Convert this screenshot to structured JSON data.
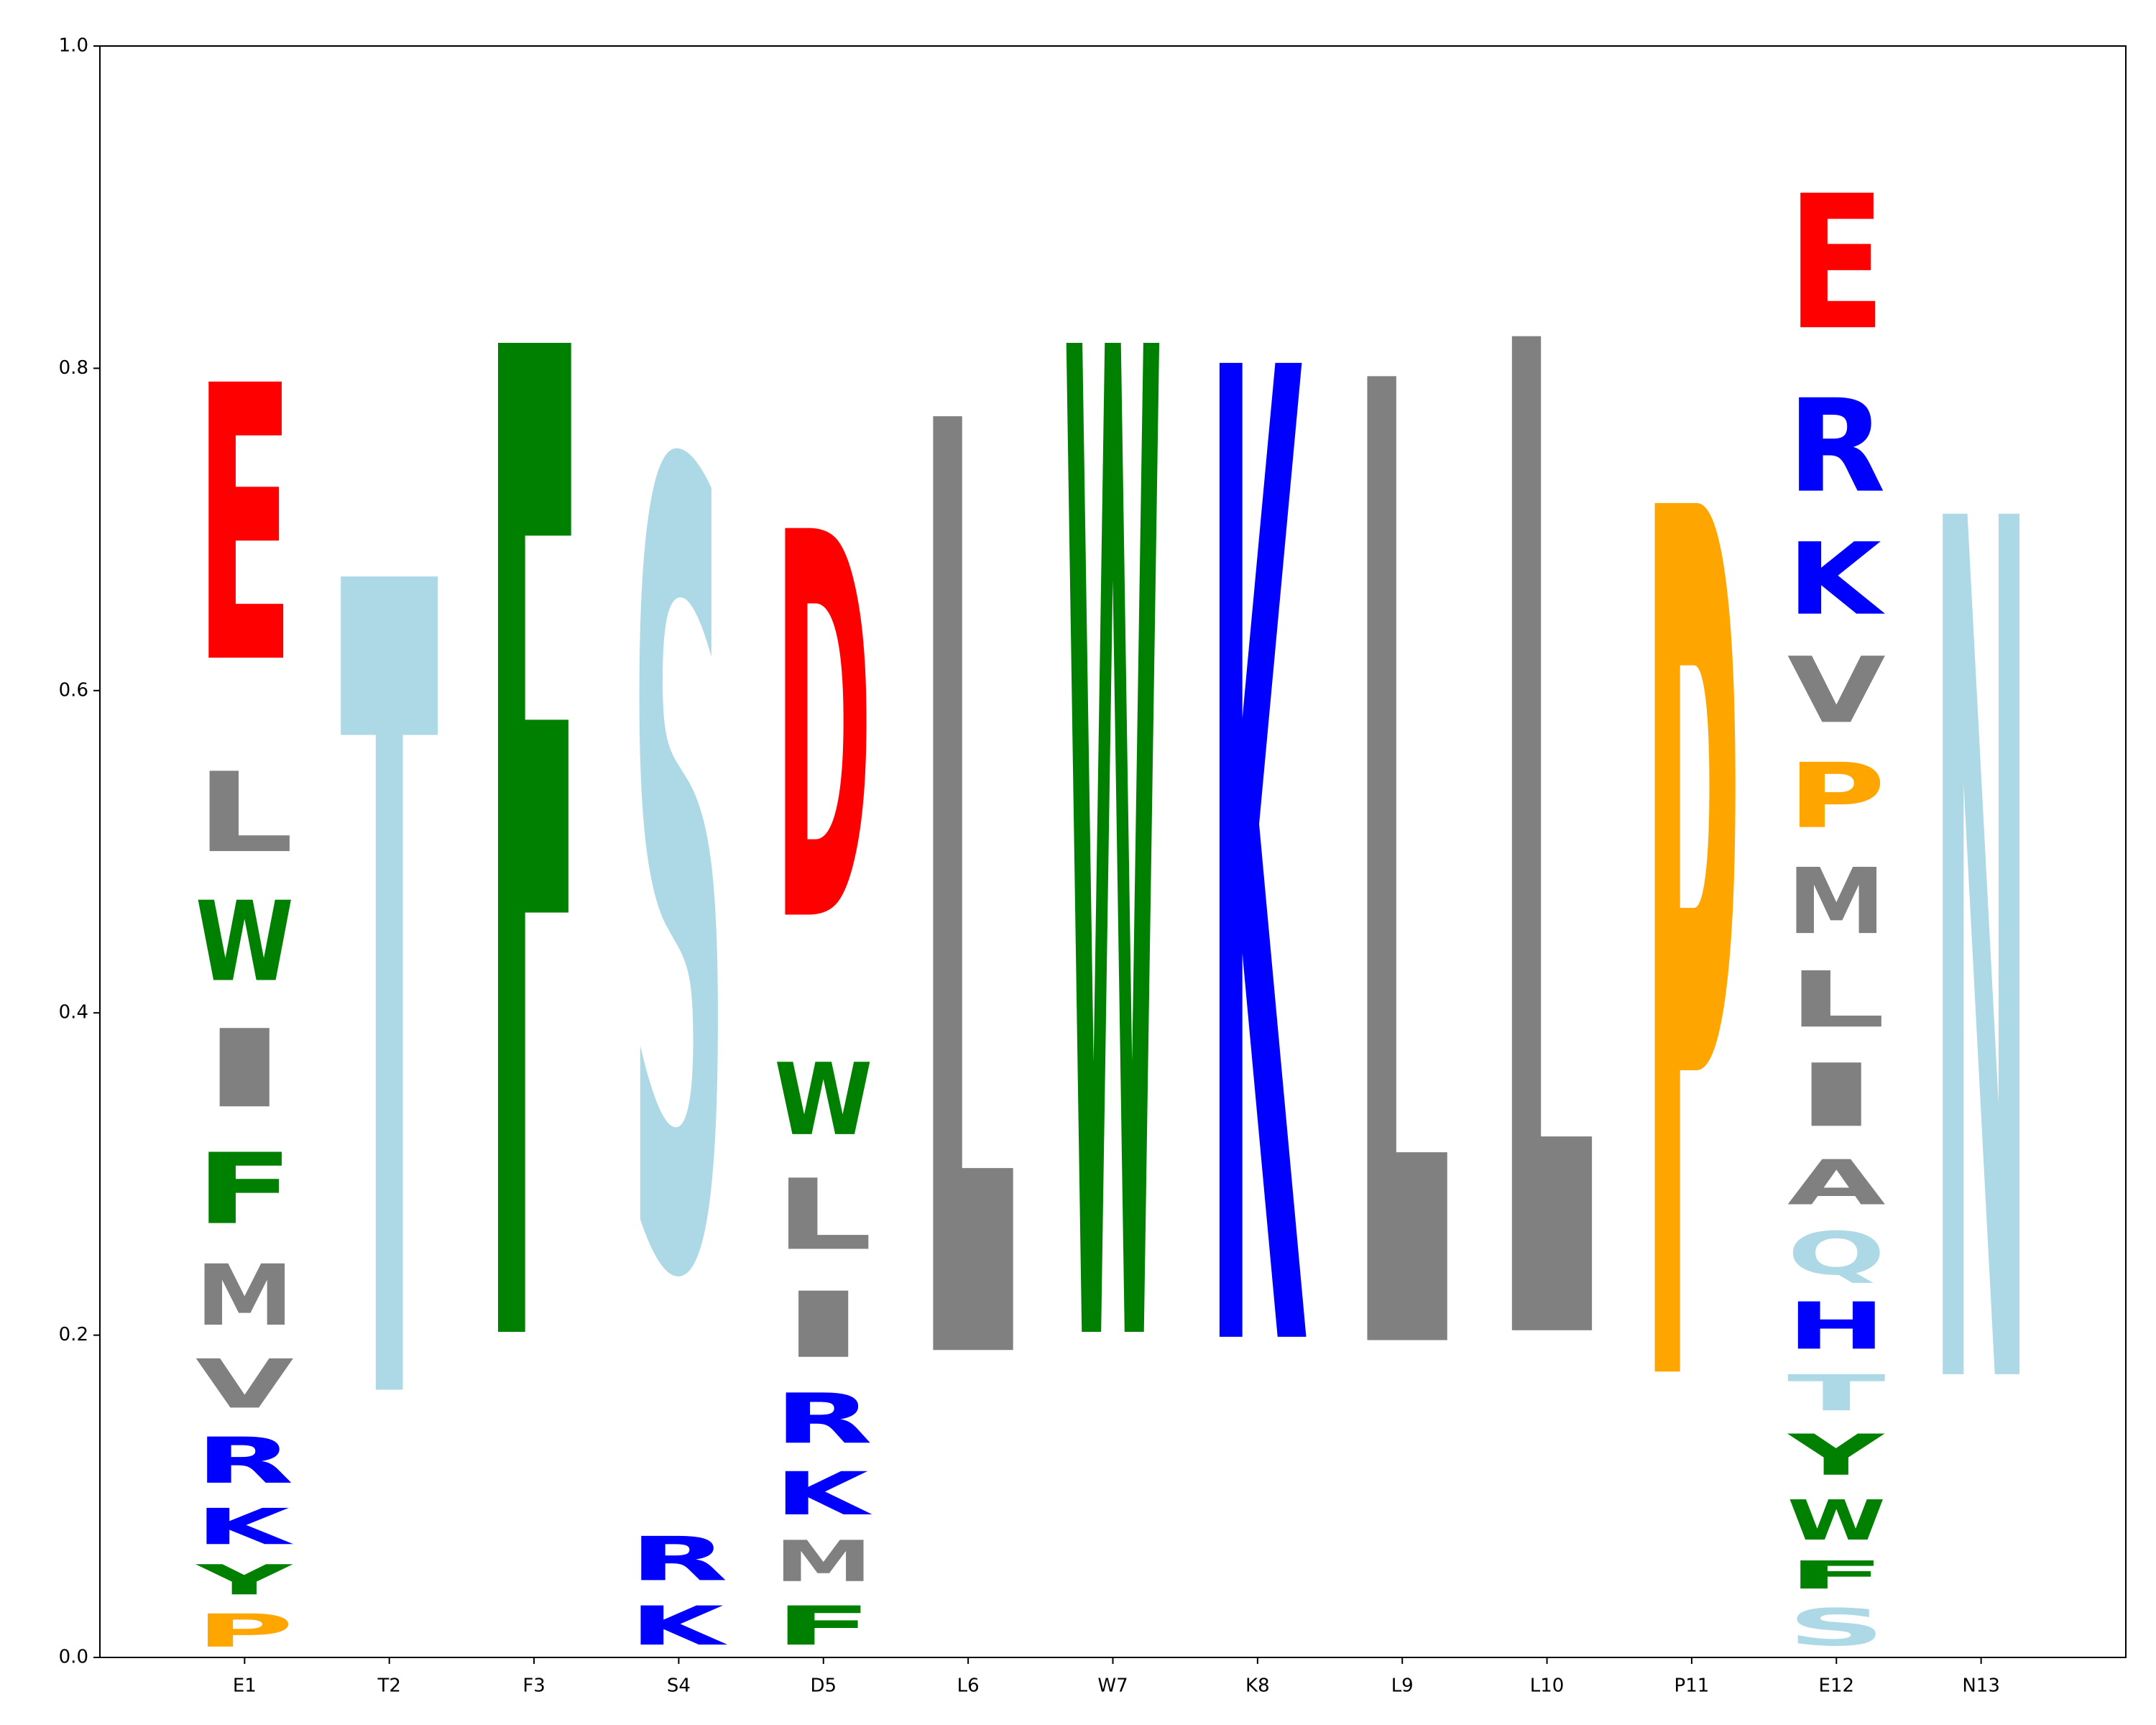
{
  "chart_data": {
    "type": "logo",
    "categories": [
      "E1",
      "T2",
      "F3",
      "S4",
      "D5",
      "L6",
      "W7",
      "K8",
      "L9",
      "L10",
      "P11",
      "E12",
      "N13"
    ],
    "stacks": [
      [
        {
          "letter": "P",
          "value": 0.033
        },
        {
          "letter": "Y",
          "value": 0.03
        },
        {
          "letter": "K",
          "value": 0.036
        },
        {
          "letter": "R",
          "value": 0.046
        },
        {
          "letter": "V",
          "value": 0.049
        },
        {
          "letter": "M",
          "value": 0.061
        },
        {
          "letter": "F",
          "value": 0.071
        },
        {
          "letter": "I",
          "value": 0.078
        },
        {
          "letter": "W",
          "value": 0.08
        },
        {
          "letter": "L",
          "value": 0.08
        },
        {
          "letter": "E",
          "value": 0.275
        }
      ],
      [
        {
          "letter": "T",
          "value": 0.81
        }
      ],
      [
        {
          "letter": "F",
          "value": 0.985
        }
      ],
      [
        {
          "letter": "K",
          "value": 0.039
        },
        {
          "letter": "R",
          "value": 0.044
        },
        {
          "letter": "S",
          "value": 0.795
        }
      ],
      [
        {
          "letter": "F",
          "value": 0.039
        },
        {
          "letter": "M",
          "value": 0.041
        },
        {
          "letter": "K",
          "value": 0.043
        },
        {
          "letter": "R",
          "value": 0.05
        },
        {
          "letter": "I",
          "value": 0.066
        },
        {
          "letter": "L",
          "value": 0.071
        },
        {
          "letter": "W",
          "value": 0.072
        },
        {
          "letter": "D",
          "value": 0.385
        }
      ],
      [
        {
          "letter": "L",
          "value": 0.93
        }
      ],
      [
        {
          "letter": "W",
          "value": 0.985
        }
      ],
      [
        {
          "letter": "K",
          "value": 0.97
        }
      ],
      [
        {
          "letter": "L",
          "value": 0.96
        }
      ],
      [
        {
          "letter": "L",
          "value": 0.99
        }
      ],
      [
        {
          "letter": "P",
          "value": 0.865
        }
      ],
      [
        {
          "letter": "S",
          "value": 0.037
        },
        {
          "letter": "F",
          "value": 0.028
        },
        {
          "letter": "W",
          "value": 0.04
        },
        {
          "letter": "Y",
          "value": 0.041
        },
        {
          "letter": "T",
          "value": 0.036
        },
        {
          "letter": "H",
          "value": 0.047
        },
        {
          "letter": "Q",
          "value": 0.043
        },
        {
          "letter": "A",
          "value": 0.045
        },
        {
          "letter": "I",
          "value": 0.063
        },
        {
          "letter": "L",
          "value": 0.056
        },
        {
          "letter": "M",
          "value": 0.066
        },
        {
          "letter": "P",
          "value": 0.065
        },
        {
          "letter": "V",
          "value": 0.066
        },
        {
          "letter": "K",
          "value": 0.072
        },
        {
          "letter": "R",
          "value": 0.093
        },
        {
          "letter": "E",
          "value": 0.134
        }
      ],
      [
        {
          "letter": "N",
          "value": 0.857
        }
      ]
    ],
    "colors": {
      "A": "#808080",
      "C": "#808080",
      "D": "#ff0000",
      "E": "#ff0000",
      "F": "#008000",
      "G": "#808080",
      "H": "#0000ff",
      "I": "#808080",
      "K": "#0000ff",
      "L": "#808080",
      "M": "#808080",
      "N": "#add8e6",
      "P": "#ffa500",
      "Q": "#add8e6",
      "R": "#0000ff",
      "S": "#add8e6",
      "T": "#add8e6",
      "V": "#808080",
      "W": "#008000",
      "Y": "#008000"
    },
    "ylim": [
      0,
      1
    ],
    "yticks": [
      {
        "value": 0,
        "label": "0.0"
      },
      0.2,
      0.4,
      0.6,
      0.8,
      {
        "value": 1,
        "label": "1.0"
      }
    ]
  }
}
